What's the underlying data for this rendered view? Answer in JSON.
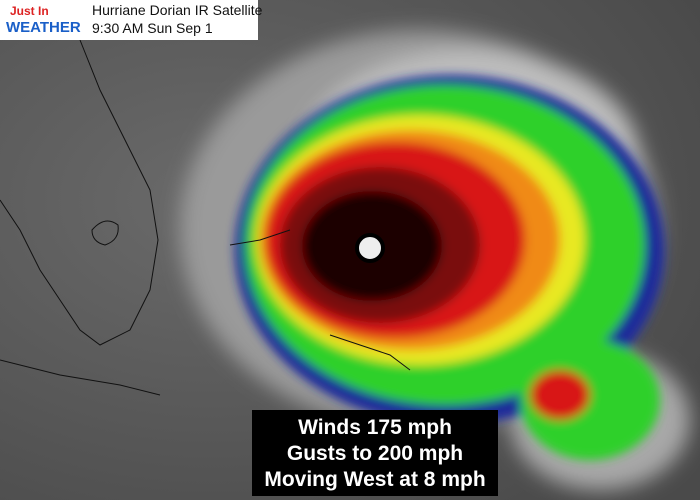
{
  "header": {
    "logo_line1": "Just In",
    "logo_line2": "WEATHER",
    "title": "Hurriane Dorian IR Satellite",
    "timestamp": "9:30 AM Sun Sep 1"
  },
  "info": {
    "lines": [
      "Winds 175 mph",
      "Gusts to 200 mph",
      "Moving West at 8 mph"
    ]
  }
}
